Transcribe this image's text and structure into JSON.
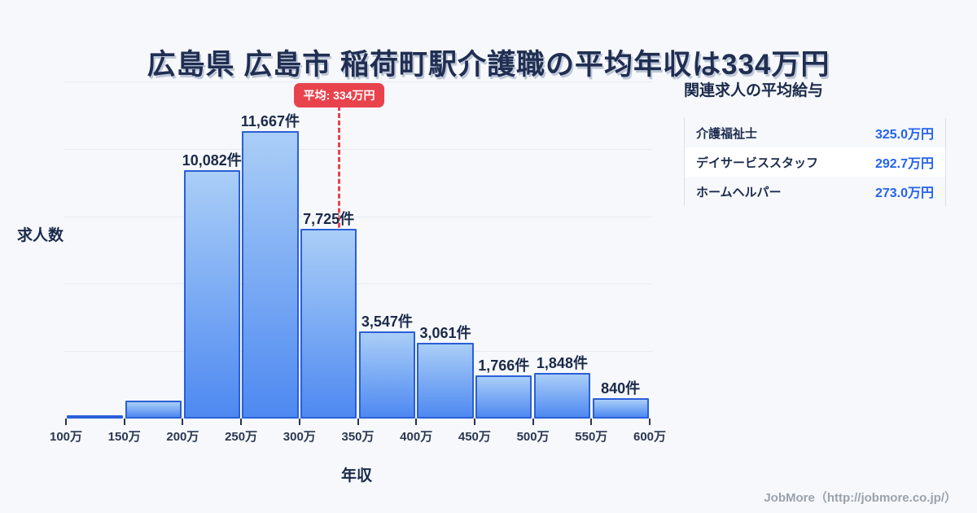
{
  "page": {
    "title": "広島県 広島市 稲荷町駅介護職の平均年収は334万円",
    "footer_credit": "JobMore（http://jobmore.co.jp/）",
    "background_color": "#f6f8fb"
  },
  "chart_data": {
    "type": "bar",
    "title": "広島県 広島市 稲荷町駅介護職の平均年収は334万円",
    "xlabel": "年収",
    "ylabel": "求人数",
    "x_ticks": [
      "100万",
      "150万",
      "200万",
      "250万",
      "300万",
      "350万",
      "400万",
      "450万",
      "500万",
      "550万",
      "600万"
    ],
    "bin_edges_manyen": [
      100,
      150,
      200,
      250,
      300,
      350,
      400,
      450,
      500,
      550,
      600
    ],
    "values": [
      130,
      725,
      10082,
      11667,
      7725,
      3547,
      3061,
      1766,
      1848,
      840
    ],
    "labels": [
      "",
      "",
      "10,082件",
      "11,667件",
      "7,725件",
      "3,547件",
      "3,061件",
      "1,766件",
      "1,848件",
      "840件"
    ],
    "estimated_indices": [
      0,
      1
    ],
    "ylim": [
      0,
      13700
    ],
    "grid": "horizontal",
    "gridline_count": 5,
    "legend": "none",
    "mean_line": {
      "value_manyen": 334,
      "label": "平均: 334万円",
      "color": "#e8434d"
    },
    "colors": {
      "bar_gradient_top": "#aacef7",
      "bar_gradient_bottom": "#4e89f1",
      "bar_border": "#2a5fd8",
      "gridline": "#e7ebf2",
      "label_text": "#1b2a4a"
    }
  },
  "related_jobs": {
    "title": "関連求人の平均給与",
    "value_color": "#2563eb",
    "rows": [
      {
        "label": "介護福祉士",
        "value": "325.0万円"
      },
      {
        "label": "デイサービススタッフ",
        "value": "292.7万円"
      },
      {
        "label": "ホームヘルパー",
        "value": "273.0万円"
      }
    ]
  }
}
